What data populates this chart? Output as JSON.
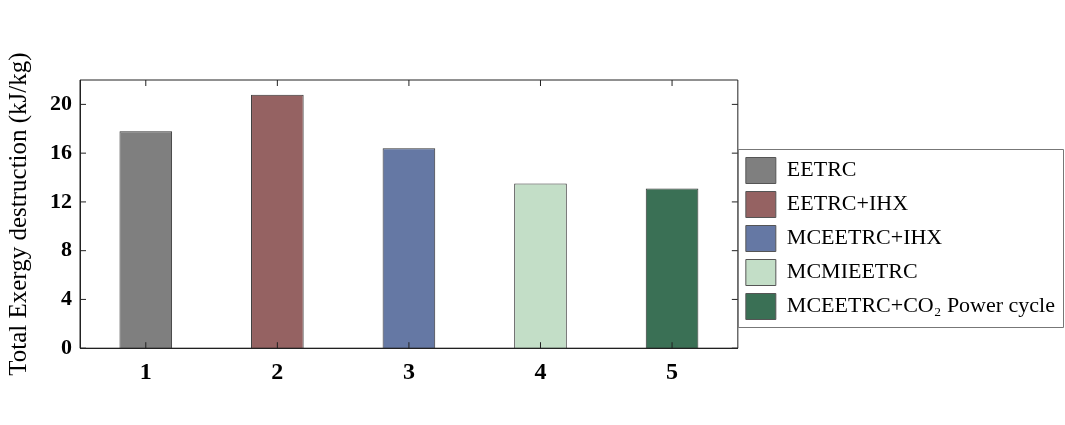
{
  "chart_data": {
    "type": "bar",
    "ylabel": "Total Exergy destruction (kJ/kg)",
    "categories": [
      "1",
      "2",
      "3",
      "4",
      "5"
    ],
    "series": [
      {
        "name": "EETRC",
        "color": "#7f7f7f",
        "values": [
          17.8,
          null,
          null,
          null,
          null
        ]
      },
      {
        "name": "EETRC+IHX",
        "color": "#956262",
        "values": [
          null,
          20.8,
          null,
          null,
          null
        ]
      },
      {
        "name": "MCEETRC+IHX",
        "color": "#6578a4",
        "values": [
          null,
          null,
          16.4,
          null,
          null
        ]
      },
      {
        "name": "MCMIEETRC",
        "color": "#c3dec7",
        "values": [
          null,
          null,
          null,
          13.5,
          null
        ]
      },
      {
        "name": "MCEETRC+CO₂ Power cycle",
        "color": "#3a7055",
        "values": [
          null,
          null,
          null,
          null,
          13.1
        ]
      }
    ],
    "ylim": [
      0,
      22
    ],
    "yticks": [
      0,
      4,
      8,
      12,
      16,
      20
    ],
    "grid": false,
    "legend": "right"
  }
}
